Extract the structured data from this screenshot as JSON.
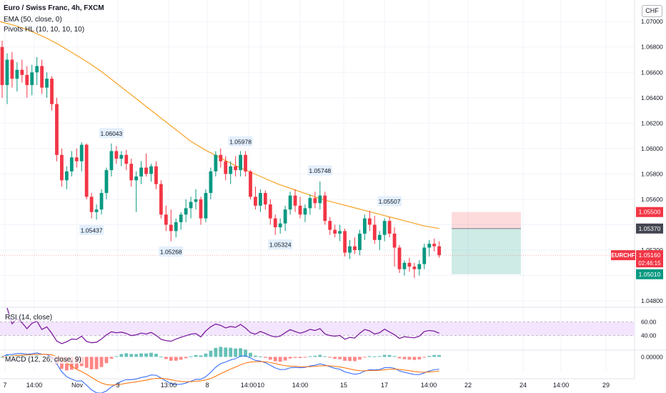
{
  "header": {
    "title": "Euro / Swiss Franc, 4h, FXCM",
    "ema_label": "EMA (50, close, 0)",
    "pivots_label": "Pivots HL (10, 10, 10, 10)",
    "currency": "CHF"
  },
  "price_axis": {
    "labels": [
      "1.07000",
      "1.06800",
      "1.06600",
      "1.06400",
      "1.06200",
      "1.06000",
      "1.05800",
      "1.05600",
      "1.05200",
      "1.04800"
    ]
  },
  "price_tags": [
    {
      "text": "1.05500",
      "color": "#f23645"
    },
    {
      "text": "1.05370",
      "color": "#434651"
    },
    {
      "symbol": "EURCHF",
      "text": "1.05160",
      "countdown": "02:46:15",
      "color": "#f23645"
    },
    {
      "text": "1.05010",
      "color": "#089981"
    }
  ],
  "pivots": [
    "1.06043",
    "1.05978",
    "1.05748",
    "1.05507",
    "1.05437",
    "1.05268",
    "1.05324"
  ],
  "time_axis": {
    "labels": [
      "7",
      "14:00",
      "Nov",
      "3",
      "13:00",
      "8",
      "14:00",
      "10",
      "14:00",
      "15",
      "17",
      "14:00",
      "22",
      "24",
      "14:00",
      "29"
    ]
  },
  "rsi": {
    "label": "RSI (14, close)",
    "levels": [
      "60.00",
      "40.00"
    ]
  },
  "macd": {
    "label": "MACD (12, 26, close, 9)",
    "level": "0.00000"
  },
  "colors": {
    "up": "#089981",
    "down": "#f23645",
    "ema": "#f7a326",
    "rsi": "#7e1fa0",
    "rsi_band": "#f3e5fd",
    "macd_line": "#2962ff",
    "signal_line": "#ff6d00"
  },
  "chart_data": {
    "type": "candlestick",
    "title": "Euro / Swiss Franc, 4h, FXCM",
    "y_range": [
      1.0475,
      1.0717
    ],
    "candles": [
      [
        1.068,
        1.0685,
        1.064,
        1.065
      ],
      [
        1.065,
        1.0675,
        1.0635,
        1.067
      ],
      [
        1.067,
        1.0676,
        1.0648,
        1.0655
      ],
      [
        1.0655,
        1.0668,
        1.0645,
        1.0662
      ],
      [
        1.0662,
        1.067,
        1.0652,
        1.0658
      ],
      [
        1.0658,
        1.0665,
        1.064,
        1.065
      ],
      [
        1.065,
        1.0666,
        1.0642,
        1.066
      ],
      [
        1.066,
        1.0672,
        1.065,
        1.0665
      ],
      [
        1.0665,
        1.067,
        1.0643,
        1.0648
      ],
      [
        1.0648,
        1.066,
        1.064,
        1.0655
      ],
      [
        1.0655,
        1.0657,
        1.063,
        1.0635
      ],
      [
        1.0635,
        1.064,
        1.059,
        1.0595
      ],
      [
        1.0595,
        1.06,
        1.057,
        1.0575
      ],
      [
        1.0575,
        1.0586,
        1.0568,
        1.0582
      ],
      [
        1.0582,
        1.0598,
        1.0578,
        1.0593
      ],
      [
        1.0593,
        1.06,
        1.0585,
        1.059
      ],
      [
        1.059,
        1.0605,
        1.0582,
        1.0603
      ],
      [
        1.0603,
        1.0604,
        1.056,
        1.0562
      ],
      [
        1.0562,
        1.0565,
        1.0545,
        1.055
      ],
      [
        1.055,
        1.0556,
        1.0544,
        1.0552
      ],
      [
        1.0552,
        1.0568,
        1.0548,
        1.0565
      ],
      [
        1.0565,
        1.0585,
        1.056,
        1.0583
      ],
      [
        1.0583,
        1.0604,
        1.0578,
        1.0598
      ],
      [
        1.0598,
        1.0602,
        1.0588,
        1.0592
      ],
      [
        1.0592,
        1.0598,
        1.0586,
        1.0595
      ],
      [
        1.0595,
        1.0599,
        1.0583,
        1.0588
      ],
      [
        1.0588,
        1.0592,
        1.057,
        1.0575
      ],
      [
        1.0575,
        1.0582,
        1.055,
        1.0578
      ],
      [
        1.0578,
        1.059,
        1.0572,
        1.0585
      ],
      [
        1.0585,
        1.0596,
        1.0578,
        1.058
      ],
      [
        1.058,
        1.0588,
        1.0574,
        1.0586
      ],
      [
        1.0586,
        1.059,
        1.0568,
        1.0572
      ],
      [
        1.0572,
        1.0575,
        1.0545,
        1.0548
      ],
      [
        1.0548,
        1.0555,
        1.0535,
        1.054
      ],
      [
        1.054,
        1.0552,
        1.0527,
        1.0535
      ],
      [
        1.0535,
        1.0545,
        1.053,
        1.0542
      ],
      [
        1.0542,
        1.055,
        1.0536,
        1.0548
      ],
      [
        1.0548,
        1.056,
        1.0542,
        1.0553
      ],
      [
        1.0553,
        1.0562,
        1.0545,
        1.0558
      ],
      [
        1.0558,
        1.0568,
        1.0552,
        1.056
      ],
      [
        1.056,
        1.0562,
        1.054,
        1.0545
      ],
      [
        1.0545,
        1.0568,
        1.0542,
        1.0565
      ],
      [
        1.0565,
        1.0585,
        1.056,
        1.0582
      ],
      [
        1.0582,
        1.0598,
        1.0578,
        1.0595
      ],
      [
        1.0595,
        1.06,
        1.0585,
        1.059
      ],
      [
        1.059,
        1.0594,
        1.0575,
        1.058
      ],
      [
        1.058,
        1.059,
        1.0572,
        1.0586
      ],
      [
        1.0586,
        1.0594,
        1.0578,
        1.0583
      ],
      [
        1.0583,
        1.0598,
        1.0578,
        1.0595
      ],
      [
        1.0595,
        1.0598,
        1.0578,
        1.0582
      ],
      [
        1.0582,
        1.0583,
        1.056,
        1.0562
      ],
      [
        1.0562,
        1.057,
        1.0552,
        1.0555
      ],
      [
        1.0555,
        1.0568,
        1.055,
        1.0565
      ],
      [
        1.0565,
        1.0567,
        1.0552,
        1.0556
      ],
      [
        1.0556,
        1.056,
        1.054,
        1.0545
      ],
      [
        1.0545,
        1.0548,
        1.0532,
        1.0538
      ],
      [
        1.0538,
        1.0545,
        1.0533,
        1.0541
      ],
      [
        1.0541,
        1.0555,
        1.0535,
        1.0552
      ],
      [
        1.0552,
        1.0566,
        1.0548,
        1.0563
      ],
      [
        1.0563,
        1.0568,
        1.055,
        1.0555
      ],
      [
        1.0555,
        1.0562,
        1.0545,
        1.0548
      ],
      [
        1.0548,
        1.0556,
        1.0542,
        1.0553
      ],
      [
        1.0553,
        1.0564,
        1.0548,
        1.0561
      ],
      [
        1.0561,
        1.0566,
        1.0553,
        1.0557
      ],
      [
        1.0557,
        1.0574,
        1.0552,
        1.0563
      ],
      [
        1.0563,
        1.0566,
        1.054,
        1.0543
      ],
      [
        1.0543,
        1.0546,
        1.0532,
        1.0536
      ],
      [
        1.0536,
        1.054,
        1.053,
        1.0533
      ],
      [
        1.0533,
        1.054,
        1.0527,
        1.0535
      ],
      [
        1.0535,
        1.0537,
        1.0515,
        1.0518
      ],
      [
        1.0518,
        1.0528,
        1.0513,
        1.0523
      ],
      [
        1.0523,
        1.053,
        1.0517,
        1.052
      ],
      [
        1.052,
        1.0536,
        1.0516,
        1.0533
      ],
      [
        1.0533,
        1.0548,
        1.0528,
        1.0545
      ],
      [
        1.0545,
        1.0551,
        1.0535,
        1.054
      ],
      [
        1.054,
        1.0547,
        1.0525,
        1.0528
      ],
      [
        1.0528,
        1.0535,
        1.052,
        1.0532
      ],
      [
        1.0532,
        1.0545,
        1.0527,
        1.0543
      ],
      [
        1.0543,
        1.0546,
        1.053,
        1.0533
      ],
      [
        1.0533,
        1.0538,
        1.0507,
        1.0522
      ],
      [
        1.0522,
        1.0524,
        1.0502,
        1.0505
      ],
      [
        1.0505,
        1.0512,
        1.05,
        1.051
      ],
      [
        1.051,
        1.0514,
        1.0503,
        1.0507
      ],
      [
        1.0507,
        1.051,
        1.0498,
        1.0505
      ],
      [
        1.0505,
        1.0512,
        1.05,
        1.0509
      ],
      [
        1.0509,
        1.0525,
        1.0505,
        1.0522
      ],
      [
        1.0522,
        1.0528,
        1.0515,
        1.0525
      ],
      [
        1.0525,
        1.0529,
        1.0519,
        1.0523
      ],
      [
        1.0523,
        1.0527,
        1.0514,
        1.0516
      ]
    ],
    "ema": [
      1.07,
      1.0697,
      1.0693,
      1.0688,
      1.0682,
      1.0675,
      1.0668,
      1.066,
      1.0651,
      1.0642,
      1.0633,
      1.0624,
      1.0615,
      1.0606,
      1.0599,
      1.0593,
      1.0587,
      1.0582,
      1.0577,
      1.0572,
      1.0568,
      1.0564,
      1.056,
      1.0557,
      1.0554,
      1.0551,
      1.0548,
      1.0545,
      1.0542,
      1.0539,
      1.0537
    ],
    "position": {
      "entry": 1.0537,
      "stop": 1.055,
      "target": 1.0501
    },
    "rsi_range": [
      20,
      80
    ],
    "macd_range": [
      -0.0014,
      0.0004
    ]
  }
}
